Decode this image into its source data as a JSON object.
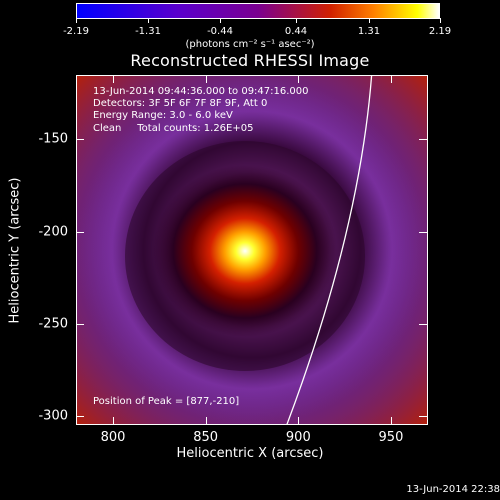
{
  "colorbar": {
    "ticks": [
      "-2.19",
      "-1.31",
      "-0.44",
      "0.44",
      "1.31",
      "2.19"
    ],
    "unit": "(photons cm⁻² s⁻¹ asec⁻²)"
  },
  "plot": {
    "title": "Reconstructed RHESSI Image",
    "info_time": "13-Jun-2014 09:44:36.000 to 09:47:16.000",
    "info_detectors": "Detectors: 3F 5F 6F 7F 8F 9F, Att 0",
    "info_energy": "Energy Range: 3.0 - 6.0 keV",
    "info_clean": "Clean     Total counts: 1.26E+05",
    "peak": "Position of Peak = [877,-210]",
    "xlabel": "Heliocentric X (arcsec)",
    "ylabel": "Heliocentric Y (arcsec)",
    "xticks": [
      "800",
      "850",
      "900",
      "950"
    ],
    "yticks": [
      "-150",
      "-200",
      "-250",
      "-300"
    ]
  },
  "timestamp": "13-Jun-2014 22:38",
  "chart_data": {
    "type": "heatmap",
    "title": "Reconstructed RHESSI Image",
    "xlabel": "Heliocentric X (arcsec)",
    "ylabel": "Heliocentric Y (arcsec)",
    "xlim": [
      780,
      970
    ],
    "ylim": [
      -305,
      -115
    ],
    "colorbar_range": [
      -2.19,
      2.19
    ],
    "peak": [
      877,
      -210
    ],
    "limb_curve": [
      [
        939,
        -115
      ],
      [
        928,
        -200
      ],
      [
        893,
        -305
      ]
    ]
  }
}
